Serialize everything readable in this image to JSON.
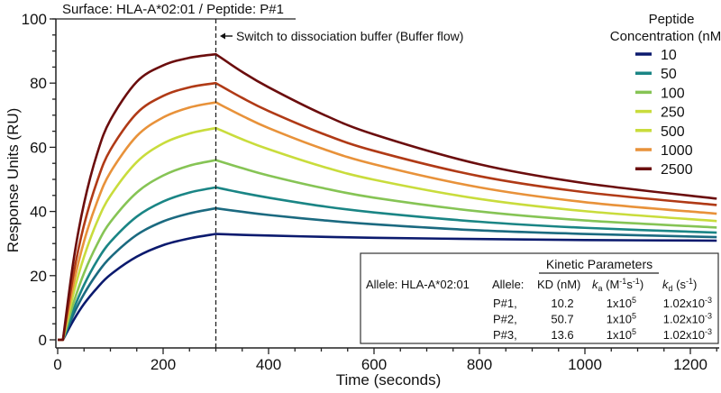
{
  "chart_data": {
    "type": "line",
    "title": "Surface: HLA-A*02:01 / Peptide: P#1",
    "xlabel": "Time (seconds)",
    "ylabel": "Response Units (RU)",
    "xlim": [
      0,
      1250
    ],
    "ylim": [
      0,
      100
    ],
    "xticks": [
      "0",
      "200",
      "400",
      "600",
      "800",
      "1000",
      "1200"
    ],
    "yticks": [
      "0",
      "20",
      "40",
      "60",
      "80",
      "100"
    ],
    "grid": false,
    "annotation": {
      "x": 300,
      "text": "Switch to dissociation buffer (Buffer flow)"
    },
    "legend": {
      "title_line1": "Peptide",
      "title_line2": "Concentration (nM)",
      "placement": "top-right",
      "entries": [
        {
          "label": "10",
          "color": "#0b1a6e"
        },
        {
          "label": "50",
          "color": "#1a8585"
        },
        {
          "label": "100",
          "color": "#86c455"
        },
        {
          "label": "250",
          "color": "#c9dc3c"
        },
        {
          "label": "500",
          "color": "#c9dc3c"
        },
        {
          "label": "1000",
          "color": "#e8923a"
        },
        {
          "label": "2500",
          "color": "#6b0d0d"
        }
      ]
    },
    "x": [
      0,
      10,
      30,
      50,
      75,
      100,
      150,
      200,
      250,
      300,
      350,
      400,
      500,
      600,
      800,
      1000,
      1250
    ],
    "series": [
      {
        "name": "10",
        "color": "#0b1a6e",
        "values": [
          0,
          0,
          6.1,
          11.2,
          16.2,
          20.3,
          25.9,
          29.5,
          31.6,
          33,
          32.7,
          32.5,
          32.1,
          31.8,
          31.4,
          31.1,
          30.9
        ]
      },
      {
        "color": "#1b6a80",
        "values": [
          0,
          0,
          7.9,
          14.3,
          20.7,
          25.7,
          32.7,
          36.9,
          39.4,
          41,
          39.9,
          38.9,
          37.3,
          36.0,
          34.1,
          33.0,
          32.0
        ]
      },
      {
        "name": "50",
        "color": "#1a8585",
        "values": [
          0,
          0,
          9.4,
          17.1,
          24.7,
          30.5,
          38.4,
          43.1,
          45.9,
          47.5,
          45.8,
          44.3,
          41.7,
          39.7,
          36.8,
          34.9,
          33.4
        ]
      },
      {
        "name": "100",
        "color": "#86c455",
        "values": [
          0,
          0,
          11.5,
          20.8,
          29.8,
          36.7,
          45.9,
          51.2,
          54.3,
          56,
          53.5,
          51.2,
          47.4,
          44.3,
          40.0,
          37.2,
          35.0
        ]
      },
      {
        "name": "250",
        "color": "#c9dc3c",
        "values": [
          0,
          0,
          14.5,
          25.9,
          36.9,
          44.9,
          55.4,
          61.2,
          64.3,
          66,
          62.5,
          59.4,
          54.1,
          49.9,
          43.9,
          40.1,
          37.0
        ]
      },
      {
        "name": "1000",
        "color": "#e8923a",
        "values": [
          0,
          0,
          17.3,
          30.7,
          43.1,
          52.2,
          63.5,
          69.3,
          72.4,
          74,
          69.8,
          66.0,
          59.7,
          54.7,
          47.5,
          42.9,
          39.3
        ]
      },
      {
        "color": "#b03a16",
        "values": [
          0,
          0,
          20.5,
          35.8,
          49.5,
          59.2,
          70.6,
          76.0,
          78.7,
          80,
          75.4,
          71.3,
          64.4,
          58.9,
          51.0,
          46.0,
          42.0
        ]
      },
      {
        "name": "2500",
        "color": "#6b0d0d",
        "values": [
          0,
          0,
          24.7,
          42.5,
          58.1,
          68.5,
          80.4,
          85.5,
          87.9,
          89,
          83.5,
          78.7,
          70.5,
          64.0,
          54.7,
          48.8,
          44.0
        ]
      }
    ],
    "table": {
      "group_header": "Kinetic Parameters",
      "left_label": "Allele: HLA-A*02:01",
      "columns": {
        "allele": "Allele:",
        "kd_nm": "KD (nM)",
        "ka_sym": "k",
        "ka_sub": "a",
        "ka_unit_pre": " (M",
        "ka_exp1": "-1",
        "ka_s": "s",
        "ka_exp2": "-1",
        "ka_close": ")",
        "kd_sym": "k",
        "kd_sub": "d",
        "kd_unit_pre": " (s",
        "kd_exp": "-1",
        "kd_close": ")"
      },
      "rows": [
        {
          "allele": "P#1,",
          "KD": "10.2",
          "ka_base": "1x10",
          "ka_exp": "5",
          "kd_base": "1.02x10",
          "kd_exp": "-3"
        },
        {
          "allele": "P#2,",
          "KD": "50.7",
          "ka_base": "1x10",
          "ka_exp": "5",
          "kd_base": "1.02x10",
          "kd_exp": "-3"
        },
        {
          "allele": "P#3,",
          "KD": "13.6",
          "ka_base": "1x10",
          "ka_exp": "5",
          "kd_base": "1.02x10",
          "kd_exp": "-3"
        }
      ]
    }
  }
}
